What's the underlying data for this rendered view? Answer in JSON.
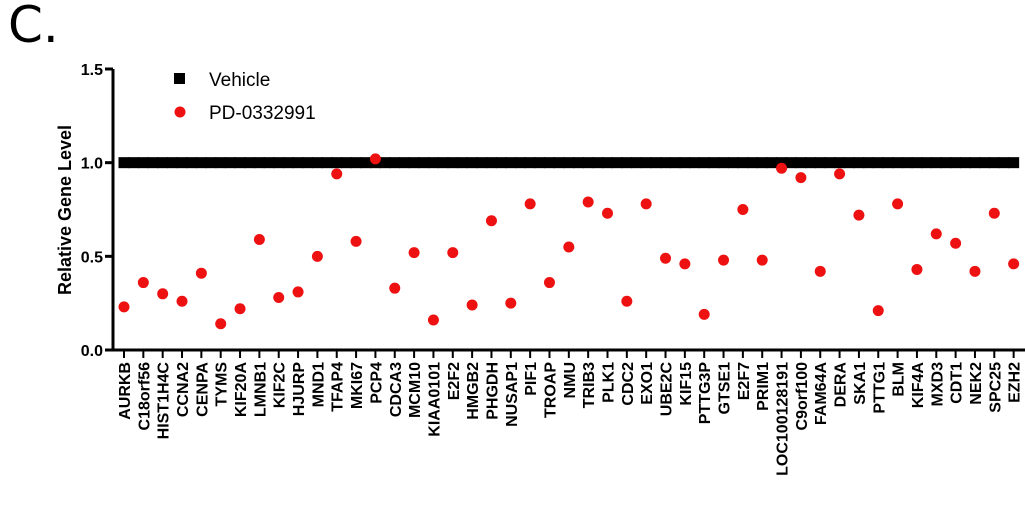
{
  "panel_label": "C.",
  "colors": {
    "vehicle": "#000000",
    "treatment": "#ee1111",
    "axis": "#000000"
  },
  "chart_data": {
    "type": "scatter",
    "ylabel": "Relative Gene Level",
    "xlabel": "",
    "ylim": [
      0,
      1.5
    ],
    "yticks": [
      0.0,
      0.5,
      1.0,
      1.5
    ],
    "ytick_labels": [
      "0.0",
      "0.5",
      "1.0",
      "1.5"
    ],
    "legend_position": "top-left",
    "categories": [
      "AURKB",
      "C18orf56",
      "HIST1H4C",
      "CCNA2",
      "CENPA",
      "TYMS",
      "KIF20A",
      "LMNB1",
      "KIF2C",
      "HJURP",
      "MND1",
      "TFAP4",
      "MKI67",
      "PCP4",
      "CDCA3",
      "MCM10",
      "KIAA0101",
      "E2F2",
      "HMGB2",
      "PHGDH",
      "NUSAP1",
      "PIF1",
      "TROAP",
      "NMU",
      "TRIB3",
      "PLK1",
      "CDC2",
      "EXO1",
      "UBE2C",
      "KIF15",
      "PTTG3P",
      "GTSE1",
      "E2F7",
      "PRIM1",
      "LOC100128191",
      "C9orf100",
      "FAM64A",
      "DERA",
      "SKA1",
      "PTTG1",
      "BLM",
      "KIF4A",
      "MXD3",
      "CDT1",
      "NEK2",
      "SPC25",
      "EZH2"
    ],
    "series": [
      {
        "name": "Vehicle",
        "marker": "square",
        "values": [
          1,
          1,
          1,
          1,
          1,
          1,
          1,
          1,
          1,
          1,
          1,
          1,
          1,
          1,
          1,
          1,
          1,
          1,
          1,
          1,
          1,
          1,
          1,
          1,
          1,
          1,
          1,
          1,
          1,
          1,
          1,
          1,
          1,
          1,
          1,
          1,
          1,
          1,
          1,
          1,
          1,
          1,
          1,
          1,
          1,
          1,
          1
        ]
      },
      {
        "name": "PD-0332991",
        "marker": "circle",
        "values": [
          0.23,
          0.36,
          0.3,
          0.26,
          0.41,
          0.14,
          0.22,
          0.59,
          0.28,
          0.31,
          0.5,
          0.94,
          0.58,
          1.02,
          0.33,
          0.52,
          0.16,
          0.52,
          0.24,
          0.69,
          0.25,
          0.78,
          0.36,
          0.55,
          0.79,
          0.73,
          0.26,
          0.78,
          0.49,
          0.46,
          0.19,
          0.48,
          0.75,
          0.48,
          0.97,
          0.92,
          0.42,
          0.94,
          0.72,
          0.21,
          0.78,
          0.43,
          0.62,
          0.57,
          0.42,
          0.73,
          0.46
        ]
      }
    ]
  }
}
